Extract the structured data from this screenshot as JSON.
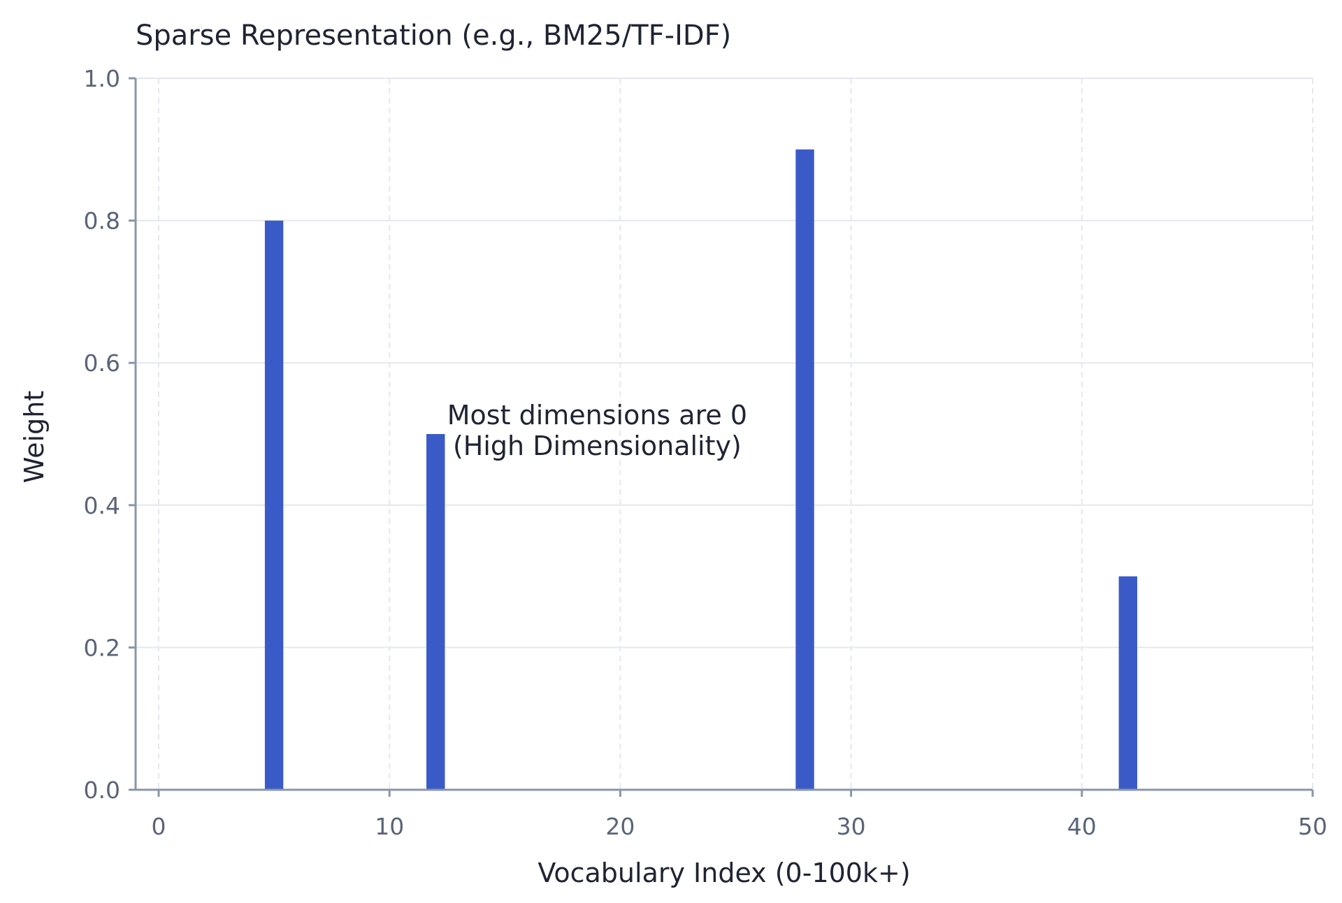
{
  "chart_data": {
    "type": "bar",
    "title": "Sparse Representation (e.g., BM25/TF-IDF)",
    "xlabel": "Vocabulary Index (0-100k+)",
    "ylabel": "Weight",
    "xlim": [
      -1,
      50
    ],
    "ylim": [
      0,
      1.0
    ],
    "xticks": [
      0,
      10,
      20,
      30,
      40,
      50
    ],
    "xtick_labels": [
      "0",
      "10",
      "20",
      "30",
      "40",
      "50"
    ],
    "yticks": [
      0.0,
      0.2,
      0.4,
      0.6,
      0.8,
      1.0
    ],
    "ytick_labels": [
      "0.0",
      "0.2",
      "0.4",
      "0.6",
      "0.8",
      "1.0"
    ],
    "grid": true,
    "bar_width": 0.8,
    "bar_color": "#3a5bc7",
    "x": [
      5,
      12,
      28,
      42
    ],
    "values": [
      0.8,
      0.5,
      0.9,
      0.3
    ],
    "annotation": {
      "lines": [
        "Most dimensions are 0",
        "(High Dimensionality)"
      ],
      "x": 19,
      "y": 0.5
    }
  }
}
